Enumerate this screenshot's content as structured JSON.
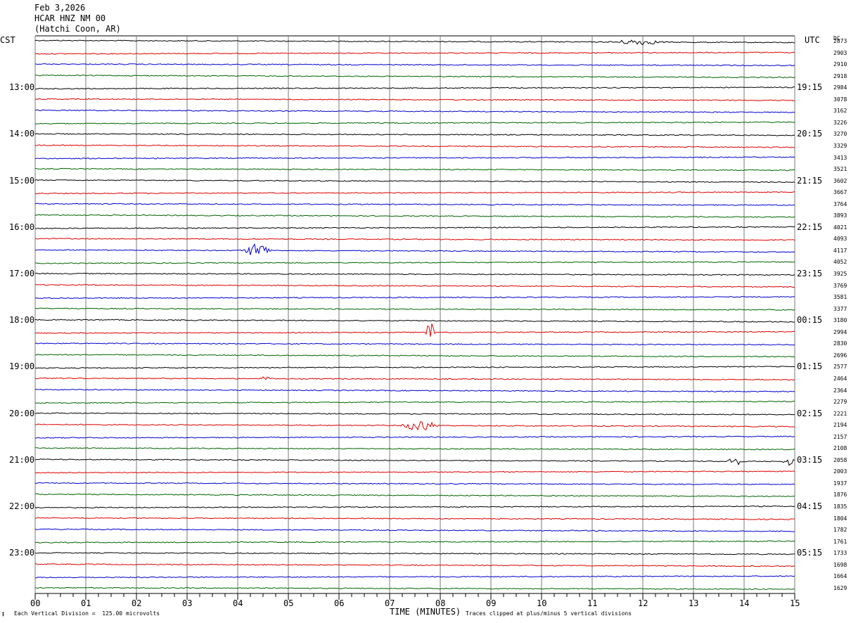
{
  "header": {
    "date": "Feb 3,2026",
    "station": "HCAR HNZ NM 00",
    "location": "(Hatchi Coon, AR)"
  },
  "left_axis_label": "CST",
  "right_axis_label": "UTC",
  "dc_label": "DC",
  "footer": {
    "mark": "‡",
    "scale_note": "Each Vertical Division =  125.00 microvolts",
    "clip_note": "Traces clipped at plus/minus 5 vertical divisions"
  },
  "colors": {
    "black": "#000000",
    "red": "#e00000",
    "blue": "#0000d0",
    "green": "#006400",
    "grid": "#7a7a7a"
  },
  "chart_data": {
    "type": "line",
    "title": "",
    "xlabel": "TIME (MINUTES)",
    "ylabel": "",
    "xlim": [
      0,
      15
    ],
    "x_tick_labels": [
      "00",
      "01",
      "02",
      "03",
      "04",
      "05",
      "06",
      "07",
      "08",
      "09",
      "10",
      "11",
      "12",
      "13",
      "14",
      "15"
    ],
    "rows_per_hour": 4,
    "trace_colors": [
      "black",
      "red",
      "blue",
      "green"
    ],
    "left_hour_labels": [
      "13:00",
      "14:00",
      "15:00",
      "16:00",
      "17:00",
      "18:00",
      "19:00",
      "20:00",
      "21:00",
      "22:00",
      "23:00"
    ],
    "right_hour_labels": [
      "19:15",
      "20:15",
      "21:15",
      "22:15",
      "23:15",
      "00:15",
      "01:15",
      "02:15",
      "03:15",
      "04:15",
      "05:15"
    ],
    "hour_label_first_row": 4,
    "dc_offsets": [
      2873,
      2903,
      2910,
      2918,
      2984,
      3078,
      3162,
      3226,
      3270,
      3329,
      3413,
      3521,
      3602,
      3667,
      3764,
      3893,
      4021,
      4093,
      4117,
      4052,
      3925,
      3769,
      3581,
      3377,
      3180,
      2994,
      2830,
      2696,
      2577,
      2464,
      2364,
      2279,
      2221,
      2194,
      2157,
      2108,
      2058,
      2003,
      1937,
      1876,
      1835,
      1804,
      1782,
      1761,
      1733,
      1698,
      1664,
      1629
    ],
    "events": [
      {
        "row": 0,
        "minute": 11.9,
        "amplitude": 4,
        "duration": 1.2
      },
      {
        "row": 18,
        "minute": 4.4,
        "amplitude": 12,
        "duration": 0.6
      },
      {
        "row": 25,
        "minute": 7.8,
        "amplitude": 22,
        "duration": 0.2
      },
      {
        "row": 29,
        "minute": 4.55,
        "amplitude": 3,
        "duration": 0.3
      },
      {
        "row": 33,
        "minute": 7.6,
        "amplitude": 9,
        "duration": 0.8
      },
      {
        "row": 36,
        "minute": 13.8,
        "amplitude": 10,
        "duration": 0.3
      },
      {
        "row": 36,
        "minute": 14.9,
        "amplitude": 5,
        "duration": 0.3
      }
    ]
  }
}
